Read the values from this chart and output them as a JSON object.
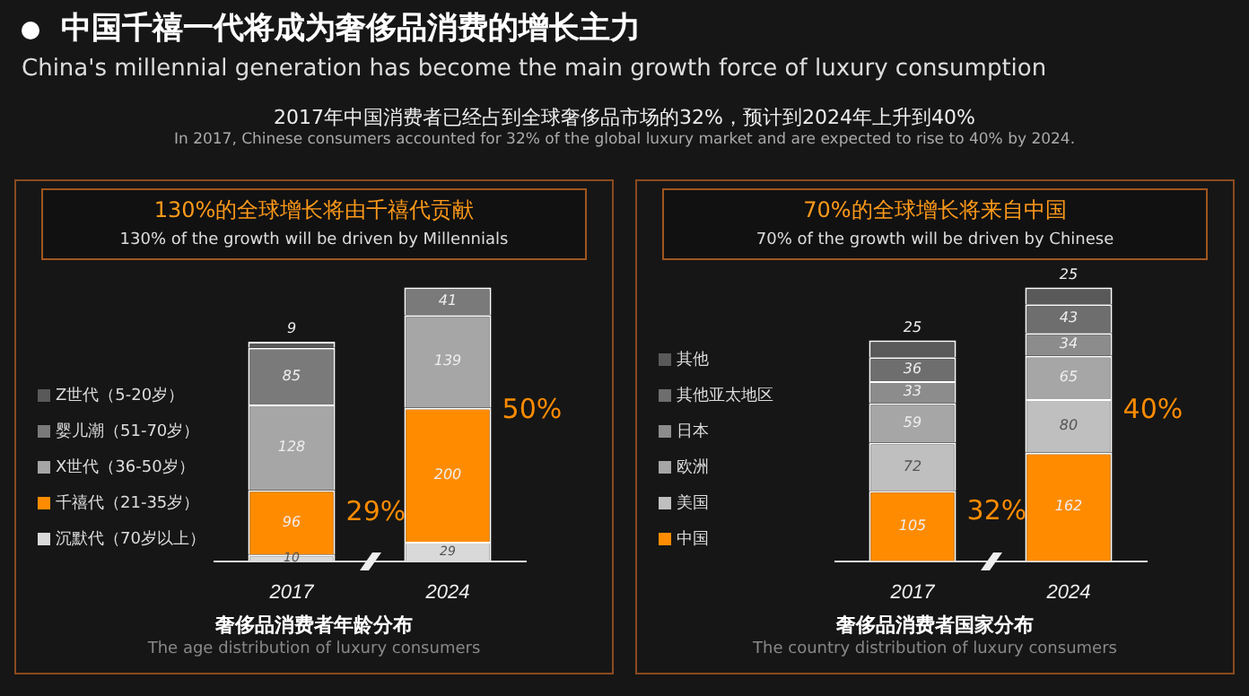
{
  "chart_data": [
    {
      "type": "other",
      "title": "中国千禧一代将成为奢侈品消费的增长主力",
      "subtitle": "China's millennial generation has become the main growth force of luxury consumption",
      "annotations": [
        "2017年中国消费者已经占到全球奢侈品市场的32%，预计到2024年上升到40%",
        "In 2017, Chinese consumers accounted for 32% of the global luxury market and are expected to rise to 40% by 2024."
      ]
    },
    {
      "type": "bar",
      "stacked": true,
      "title": "130%的全球增长将由千禧代贡献",
      "subtitle": "130% of the growth will be driven by Millennials",
      "xlabel": "奢侈品消费者年龄分布",
      "categories": [
        "2017",
        "2024"
      ],
      "series": [
        {
          "name": "沉默代（70岁以上）",
          "color": "#d9d9d9",
          "values": [
            10,
            29
          ]
        },
        {
          "name": "千禧代（21-35岁）",
          "color": "#ff8c00",
          "values": [
            96,
            200
          ]
        },
        {
          "name": "X世代（36-50岁）",
          "color": "#a6a6a6",
          "values": [
            128,
            139
          ]
        },
        {
          "name": "婴儿潮（51-70岁）",
          "color": "#7a7a7a",
          "values": [
            85,
            41
          ]
        },
        {
          "name": "Z世代（5-20岁）",
          "color": "#595959",
          "values": [
            9,
            null
          ]
        }
      ],
      "annotations": [
        "The age distribution of luxury consumers",
        "29%",
        "50%"
      ],
      "data_labels": true,
      "legend": "left",
      "tick_labels": "x"
    },
    {
      "type": "bar",
      "stacked": true,
      "title": "70%的全球增长将来自中国",
      "subtitle": "70% of the growth will be driven by Chinese",
      "xlabel": "奢侈品消费者国家分布",
      "categories": [
        "2017",
        "2024"
      ],
      "series": [
        {
          "name": "中国",
          "color": "#ff8c00",
          "values": [
            105,
            162
          ]
        },
        {
          "name": "美国",
          "color": "#bfbfbf",
          "values": [
            72,
            80
          ]
        },
        {
          "name": "欧洲",
          "color": "#a6a6a6",
          "values": [
            59,
            65
          ]
        },
        {
          "name": "日本",
          "color": "#8c8c8c",
          "values": [
            33,
            34
          ]
        },
        {
          "name": "其他亚太地区",
          "color": "#6e6e6e",
          "values": [
            36,
            43
          ]
        },
        {
          "name": "其他",
          "color": "#595959",
          "values": [
            25,
            25
          ]
        }
      ],
      "annotations": [
        "The country distribution of luxury consumers",
        "32%",
        "40%"
      ],
      "data_labels": true,
      "legend": "left",
      "tick_labels": "x"
    }
  ]
}
